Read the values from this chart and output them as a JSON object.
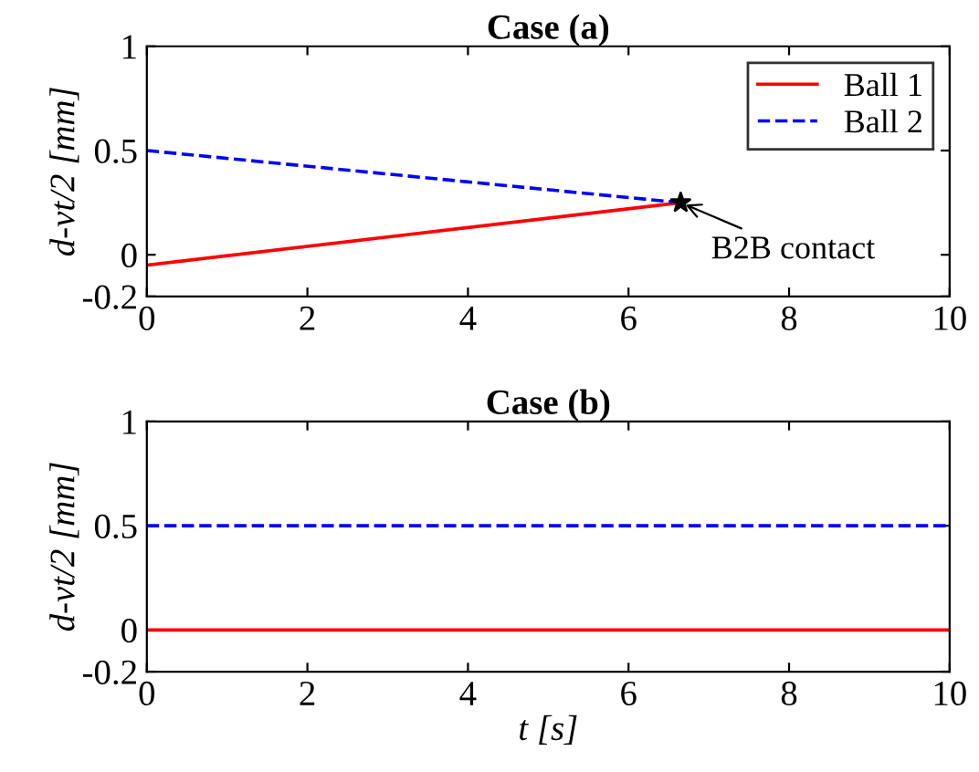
{
  "chart_data": [
    {
      "type": "line",
      "title": "Case (a)",
      "ylabel": "d-vt/2 [mm]",
      "xlim": [
        0,
        10
      ],
      "ylim": [
        -0.2,
        1
      ],
      "xticks": [
        0,
        2,
        4,
        6,
        8,
        10
      ],
      "yticks": [
        -0.2,
        0,
        0.5,
        1
      ],
      "grid": false,
      "legend": "top right",
      "annotations": [
        {
          "text": "B2B contact",
          "x": 6.65,
          "y": 0.25
        }
      ],
      "series": [
        {
          "name": "Ball 1",
          "color": "#ff0000",
          "line_style": "solid",
          "x": [
            0,
            6.65
          ],
          "values": [
            -0.05,
            0.25
          ]
        },
        {
          "name": "Ball 2",
          "color": "#0000ff",
          "line_style": "dashed",
          "x": [
            0,
            6.65
          ],
          "values": [
            0.5,
            0.25
          ]
        },
        {
          "type": "scatter",
          "color": "#000000",
          "marker": "star",
          "x": [
            6.65
          ],
          "values": [
            0.25
          ]
        }
      ]
    },
    {
      "type": "line",
      "title": "Case (b)",
      "xlabel": "t [s]",
      "ylabel": "d-vt/2 [mm]",
      "xlim": [
        0,
        10
      ],
      "ylim": [
        -0.2,
        1
      ],
      "xticks": [
        0,
        2,
        4,
        6,
        8,
        10
      ],
      "yticks": [
        -0.2,
        0,
        0.5,
        1
      ],
      "grid": false,
      "series": [
        {
          "color": "#ff0000",
          "line_style": "solid",
          "x": [
            0,
            10
          ],
          "values": [
            0,
            0
          ]
        },
        {
          "color": "#0000ff",
          "line_style": "dashed",
          "x": [
            0,
            10
          ],
          "values": [
            0.5,
            0.5
          ]
        }
      ]
    }
  ]
}
